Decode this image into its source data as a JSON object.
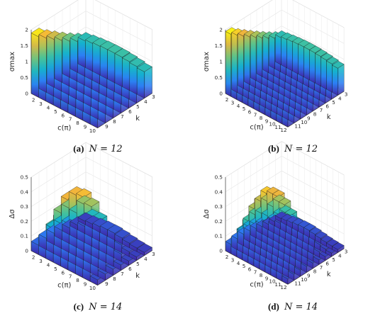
{
  "chart_data": [
    {
      "type": "bar3d",
      "panel": "a",
      "caption": {
        "letter": "(a)",
        "text": "N = 12"
      },
      "xlabel": "c(π)",
      "ylabel": "k",
      "zlabel": "σmax",
      "zlim": [
        0,
        2
      ],
      "zticks": [
        "0",
        "0.5",
        "1",
        "1.5",
        "2"
      ],
      "c_values": [
        2,
        3,
        4,
        5,
        6,
        7,
        8,
        9,
        10
      ],
      "k_values": [
        3,
        4,
        5,
        6,
        7,
        8,
        9
      ],
      "z_at_k_front": 0.93,
      "z_at_k_back": 2.0,
      "z_edge_drop": 0.1,
      "colormap": [
        "#3e26a8",
        "#2c7ef5",
        "#13b1cf",
        "#45c39a",
        "#a8c25a",
        "#f5b43a",
        "#f9fb0e"
      ]
    },
    {
      "type": "bar3d",
      "panel": "b",
      "caption": {
        "letter": "(b)",
        "text": "N = 12"
      },
      "xlabel": "c(π)",
      "ylabel": "k",
      "zlabel": "σmax",
      "zlim": [
        0,
        2
      ],
      "zticks": [
        "0",
        "0.5",
        "1",
        "1.5",
        "2"
      ],
      "c_values": [
        2,
        3,
        4,
        5,
        6,
        7,
        8,
        9,
        10,
        11,
        12
      ],
      "k_values": [
        3,
        4,
        5,
        6,
        7,
        8,
        9,
        10,
        11
      ],
      "z_at_k_front": 0.95,
      "z_at_k_back": 2.05,
      "z_edge_drop": 0.1,
      "colormap": [
        "#3e26a8",
        "#2c7ef5",
        "#13b1cf",
        "#45c39a",
        "#a8c25a",
        "#f5b43a",
        "#f9fb0e"
      ]
    },
    {
      "type": "bar3d",
      "panel": "c",
      "caption": {
        "letter": "(c)",
        "text": "N = 14"
      },
      "xlabel": "c(π)",
      "ylabel": "k",
      "zlabel": "Δσ",
      "zlim": [
        0,
        0.5
      ],
      "zticks": [
        "0",
        "0.1",
        "0.2",
        "0.3",
        "0.4",
        "0.5"
      ],
      "c_values": [
        2,
        3,
        4,
        5,
        6,
        7,
        8,
        9,
        10
      ],
      "k_values": [
        3,
        4,
        5,
        6,
        7,
        8,
        9
      ],
      "z_peak": 0.45,
      "z_base": 0.02,
      "colormap": [
        "#3e26a8",
        "#2c7ef5",
        "#13b1cf",
        "#45c39a",
        "#a8c25a",
        "#f5b43a",
        "#f9fb0e"
      ]
    },
    {
      "type": "bar3d",
      "panel": "d",
      "caption": {
        "letter": "(d)",
        "text": "N = 14"
      },
      "xlabel": "c(π)",
      "ylabel": "k",
      "zlabel": "Δσ",
      "zlim": [
        0,
        0.5
      ],
      "zticks": [
        "0",
        "0.1",
        "0.2",
        "0.3",
        "0.4",
        "0.5"
      ],
      "c_values": [
        2,
        3,
        4,
        5,
        6,
        7,
        8,
        9,
        10,
        11,
        12
      ],
      "k_values": [
        3,
        4,
        5,
        6,
        7,
        8,
        9,
        10,
        11
      ],
      "z_peak": 0.45,
      "z_base": 0.02,
      "colormap": [
        "#3e26a8",
        "#2c7ef5",
        "#13b1cf",
        "#45c39a",
        "#a8c25a",
        "#f5b43a",
        "#f9fb0e"
      ]
    }
  ]
}
